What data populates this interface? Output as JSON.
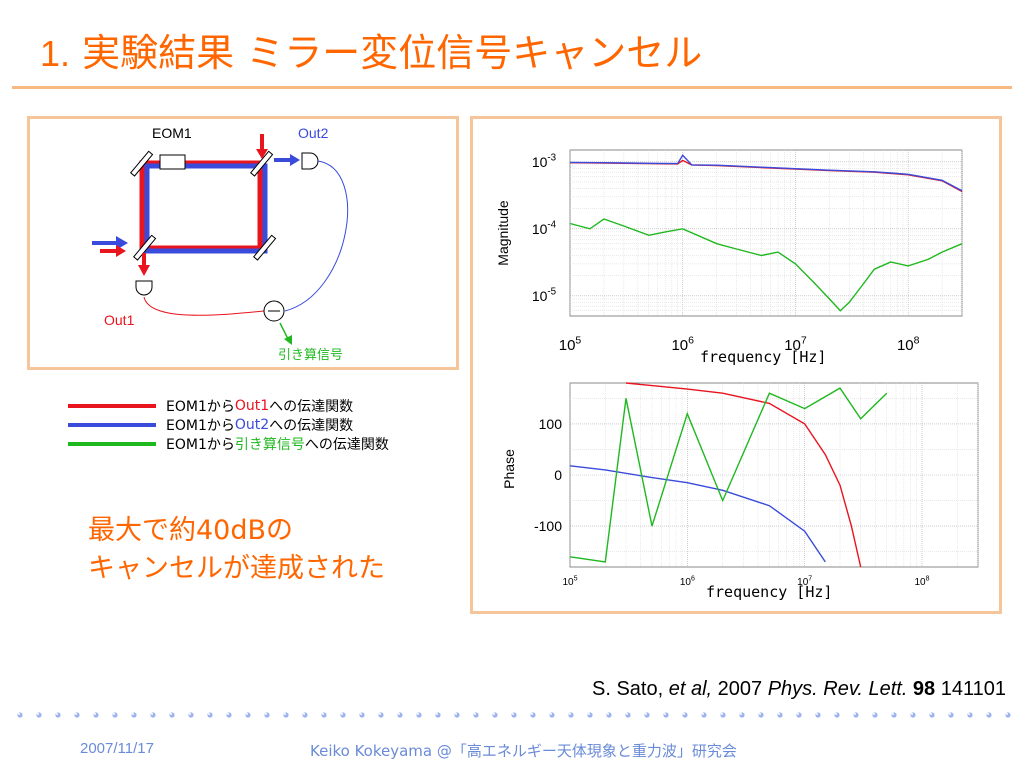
{
  "title": {
    "number": "1.",
    "text": "実験結果  ミラー変位信号キャンセル"
  },
  "diagram": {
    "eom_label": "EOM1",
    "out1_label": "Out1",
    "out2_label": "Out2",
    "sub_label": "引き算信号",
    "colors": {
      "red": "#e8141e",
      "blue": "#3a4bdc",
      "green": "#1fb81f"
    }
  },
  "legend": [
    {
      "prefix": "EOM1から",
      "target": "Out1",
      "suffix": "への伝達関数",
      "color": "#e8141e"
    },
    {
      "prefix": "EOM1から",
      "target": "Out2",
      "suffix": "への伝達関数",
      "color": "#3a4bdc"
    },
    {
      "prefix": "EOM1から",
      "target": "引き算信号",
      "suffix": "への伝達関数",
      "color": "#1fb81f"
    }
  ],
  "result": {
    "line1": "最大で約40dBの",
    "line2": "キャンセルが達成された"
  },
  "citation": {
    "author": "S. Sato, ",
    "etal": "et al,",
    "year": " 2007 ",
    "journal": "Phys. Rev. Lett.",
    "volume": " 98",
    "page": " 141101"
  },
  "footer": {
    "date": "2007/11/17",
    "conference": "Keiko Kokeyama @「高エネルギー天体現象と重力波」研究会"
  },
  "chart_data": [
    {
      "type": "line",
      "ylabel": "Magnitude",
      "xlabel": "frequency [Hz]",
      "xscale": "log",
      "yscale": "log",
      "xlim": [
        100000,
        300000000
      ],
      "ylim": [
        5e-06,
        0.0015
      ],
      "xticks": [
        "10^5",
        "10^6",
        "10^7",
        "10^8"
      ],
      "yticks": [
        "10^-3",
        "10^-4",
        "10^-5"
      ],
      "grid": true,
      "series": [
        {
          "color": "#e8141e",
          "x": [
            100000,
            200000,
            500000,
            900000,
            1000000,
            1200000,
            2000000,
            5000000,
            10000000,
            20000000,
            50000000,
            100000000,
            200000000,
            300000000
          ],
          "y": [
            0.00097,
            0.00096,
            0.00094,
            0.00093,
            0.00105,
            0.0009,
            0.00088,
            0.00082,
            0.00078,
            0.00074,
            0.0007,
            0.00064,
            0.00052,
            0.00036
          ]
        },
        {
          "color": "#3a4bdc",
          "x": [
            100000,
            200000,
            500000,
            900000,
            1000000,
            1200000,
            2000000,
            5000000,
            10000000,
            20000000,
            50000000,
            100000000,
            200000000,
            300000000
          ],
          "y": [
            0.00098,
            0.00097,
            0.00095,
            0.00094,
            0.00125,
            0.0009,
            0.00089,
            0.00083,
            0.00079,
            0.00075,
            0.00071,
            0.00065,
            0.00053,
            0.00037
          ]
        },
        {
          "color": "#1fb81f",
          "x": [
            100000,
            150000,
            200000,
            300000,
            500000,
            700000,
            1000000,
            2000000,
            3000000,
            5000000,
            7000000,
            10000000,
            15000000,
            20000000,
            25000000,
            30000000,
            40000000,
            50000000,
            70000000,
            100000000,
            150000000,
            200000000,
            300000000
          ],
          "y": [
            0.00012,
            0.0001,
            0.00014,
            0.00011,
            8e-05,
            9e-05,
            0.0001,
            6e-05,
            5e-05,
            4e-05,
            4.5e-05,
            3e-05,
            1.5e-05,
            9e-06,
            6e-06,
            8e-06,
            1.5e-05,
            2.5e-05,
            3.2e-05,
            2.8e-05,
            3.5e-05,
            4.5e-05,
            6e-05
          ]
        }
      ]
    },
    {
      "type": "line",
      "ylabel": "Phase",
      "xlabel": "frequency [Hz]",
      "xscale": "log",
      "xlim": [
        100000,
        300000000
      ],
      "ylim": [
        -180,
        180
      ],
      "xticks": [
        "10^5",
        "10^6",
        "10^7",
        "10^8"
      ],
      "yticks": [
        "100",
        "0",
        "-100"
      ],
      "grid": true,
      "series": [
        {
          "color": "#e8141e",
          "x": [
            300000,
            500000,
            1000000,
            2000000,
            5000000,
            10000000,
            15000000,
            20000000,
            25000000,
            30000000
          ],
          "y": [
            180,
            175,
            168,
            160,
            140,
            100,
            40,
            -20,
            -100,
            -180
          ]
        },
        {
          "color": "#3a4bdc",
          "x": [
            100000,
            200000,
            500000,
            1000000,
            2000000,
            5000000,
            10000000,
            15000000
          ],
          "y": [
            18,
            10,
            -5,
            -15,
            -30,
            -60,
            -110,
            -170
          ]
        },
        {
          "color": "#1fb81f",
          "x": [
            100000,
            200000,
            300000,
            500000,
            1000000,
            2000000,
            5000000,
            10000000,
            20000000,
            30000000,
            50000000
          ],
          "y": [
            -160,
            -170,
            150,
            -100,
            120,
            -50,
            160,
            130,
            170,
            110,
            160
          ]
        }
      ]
    }
  ]
}
